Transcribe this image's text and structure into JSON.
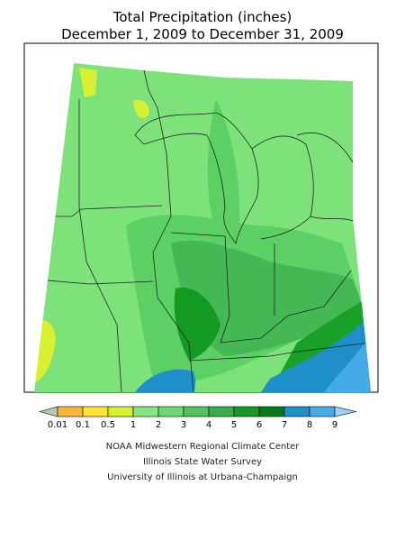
{
  "title": [
    "Total Precipitation (inches)",
    "December 1, 2009 to December 31, 2009"
  ],
  "legend": {
    "labels": [
      "0.01",
      "0.1",
      "0.5",
      "1",
      "2",
      "3",
      "4",
      "5",
      "6",
      "7",
      "8",
      "9"
    ],
    "below_color": "#b8c8b8",
    "colors": [
      "#ffb33a",
      "#ffe23c",
      "#d8f030",
      "#86e67e",
      "#6cd872",
      "#50c25e",
      "#38ac48",
      "#129a22",
      "#007a18",
      "#1e8fc8",
      "#45aae6"
    ],
    "above_color": "#9cd0f8"
  },
  "credits": [
    "NOAA Midwestern Regional Climate Center",
    "Illinois State Water Survey",
    "University of Illinois at Urbana-Champaign"
  ]
}
